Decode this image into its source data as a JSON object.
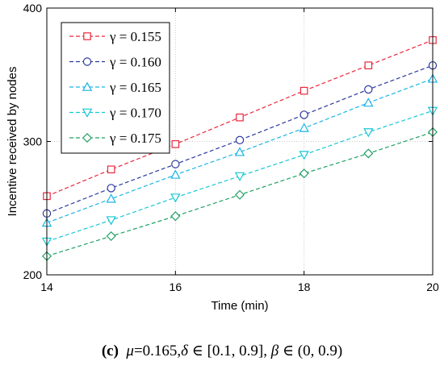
{
  "chart_data": {
    "type": "line",
    "xlabel": "Time (min)",
    "ylabel": "Incentive received by nodes",
    "xlim": [
      14,
      20
    ],
    "ylim": [
      200,
      400
    ],
    "xticks": [
      "14",
      "16",
      "18",
      "20"
    ],
    "yticks": [
      "200",
      "300",
      "400"
    ],
    "grid": "dotted",
    "legend_position": "top-left",
    "x": [
      14,
      15,
      16,
      17,
      18,
      19,
      20
    ],
    "series": [
      {
        "name": "γ = 0.155",
        "color": "#e8283c",
        "marker": "square",
        "values": [
          259,
          279,
          298,
          318,
          338,
          357,
          376
        ]
      },
      {
        "name": "γ = 0.160",
        "color": "#2c3a9c",
        "marker": "circle",
        "values": [
          246,
          265,
          283,
          301,
          320,
          339,
          357
        ]
      },
      {
        "name": "γ = 0.165",
        "color": "#1cb4e6",
        "marker": "triangle-up",
        "values": [
          239,
          257,
          275,
          292,
          310,
          329,
          347
        ]
      },
      {
        "name": "γ = 0.170",
        "color": "#18c8d4",
        "marker": "triangle-down",
        "values": [
          225,
          241,
          258,
          274,
          290,
          307,
          323
        ]
      },
      {
        "name": "γ = 0.175",
        "color": "#20a064",
        "marker": "diamond",
        "values": [
          214,
          229,
          244,
          260,
          276,
          291,
          307
        ]
      }
    ]
  },
  "caption": {
    "label": "(c)",
    "mu_symbol": "μ",
    "mu_value": "=0.165,",
    "delta_symbol": "δ",
    "delta_range": " ∈ [0.1, 0.9], ",
    "beta_symbol": "β",
    "beta_range": " ∈ (0, 0.9)"
  }
}
